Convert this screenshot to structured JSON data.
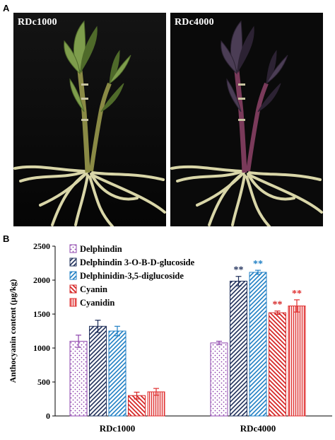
{
  "panel_a": {
    "letter": "A",
    "photos": [
      {
        "label": "RDc1000",
        "leaf_color": "#7e9d4c",
        "leaf_dark": "#4f6a2a",
        "stem_color": "#8a8a45"
      },
      {
        "label": "RDc4000",
        "leaf_color": "#4b3d55",
        "leaf_dark": "#2c2233",
        "stem_color": "#7a3a5a"
      }
    ]
  },
  "panel_b": {
    "letter": "B"
  },
  "chart_data": {
    "type": "bar",
    "title": "",
    "xlabel": "",
    "ylabel": "Anthocyanin content (μg/kg)",
    "ylim": [
      0,
      2500
    ],
    "yticks": [
      0,
      500,
      1000,
      1500,
      2000,
      2500
    ],
    "categories": [
      "RDc1000",
      "RDc4000"
    ],
    "legend_position": "top-left",
    "series": [
      {
        "name": "Delphindin",
        "values": [
          1100,
          1075
        ],
        "errors": [
          90,
          25
        ],
        "color": "#8e44ad",
        "pattern": "dots",
        "significance": [
          "",
          ""
        ]
      },
      {
        "name": "Delphindin 3-O-B-D-glucoside",
        "values": [
          1320,
          1985
        ],
        "errors": [
          90,
          70
        ],
        "color": "#1f2f5a",
        "pattern": "diag",
        "significance": [
          "",
          "**"
        ]
      },
      {
        "name": "Delphinidin-3,5-diglucoside",
        "values": [
          1250,
          2115
        ],
        "errors": [
          70,
          30
        ],
        "color": "#1f7fc4",
        "pattern": "diag",
        "significance": [
          "",
          "**"
        ]
      },
      {
        "name": "Cyanin",
        "values": [
          300,
          1520
        ],
        "errors": [
          50,
          25
        ],
        "color": "#d62828",
        "pattern": "diag2",
        "significance": [
          "",
          "**"
        ]
      },
      {
        "name": "Cyanidin",
        "values": [
          355,
          1620
        ],
        "errors": [
          50,
          90
        ],
        "color": "#e03030",
        "pattern": "vert",
        "significance": [
          "",
          "**"
        ]
      }
    ]
  }
}
